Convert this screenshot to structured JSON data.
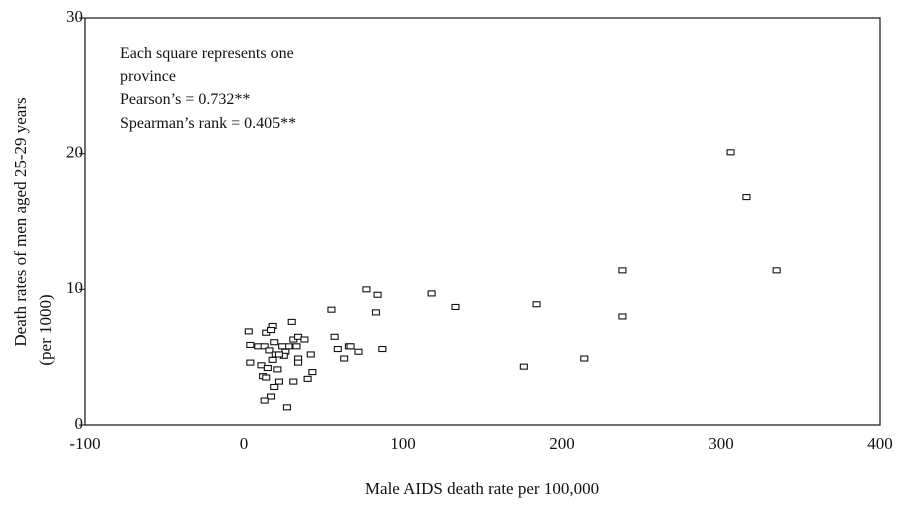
{
  "chart_data": {
    "type": "scatter",
    "xlabel": "Male AIDS death rate per 100,000",
    "ylabel": [
      "Death rates of men aged 25-29 years",
      "(per 1000)"
    ],
    "annotations": [
      "Each square represents one",
      "province",
      "Pearson’s = 0.732**",
      "Spearman’s rank = 0.405**"
    ],
    "xlim": [
      -100,
      400
    ],
    "xticks": [
      -100,
      0,
      100,
      200,
      300,
      400
    ],
    "ylim": [
      0,
      30
    ],
    "yticks": [
      0,
      10,
      20,
      30
    ],
    "color": "#111111",
    "x": [
      306,
      316,
      335,
      238,
      238,
      214,
      176,
      184,
      133,
      118,
      77,
      84,
      83,
      55,
      57,
      87,
      59,
      66,
      67,
      72,
      63,
      3,
      4,
      4,
      11,
      9,
      13,
      14,
      18,
      17,
      19,
      16,
      20,
      18,
      12,
      14,
      15,
      21,
      22,
      19,
      17,
      13,
      27,
      30,
      31,
      28,
      26,
      25,
      22,
      34,
      38,
      34,
      34,
      42,
      43,
      40,
      31,
      33,
      24
    ],
    "y": [
      20.1,
      16.8,
      11.4,
      11.4,
      8.0,
      4.9,
      4.3,
      8.9,
      8.7,
      9.7,
      10.0,
      9.6,
      8.3,
      8.5,
      6.5,
      5.6,
      5.6,
      5.8,
      5.8,
      5.4,
      4.9,
      6.9,
      5.9,
      4.6,
      4.4,
      5.8,
      5.8,
      6.8,
      7.3,
      7.0,
      6.1,
      5.5,
      5.2,
      4.8,
      3.6,
      3.5,
      4.2,
      4.1,
      3.2,
      2.8,
      2.1,
      1.8,
      1.3,
      7.6,
      6.3,
      5.8,
      5.4,
      5.1,
      5.2,
      6.5,
      6.3,
      4.9,
      4.6,
      5.2,
      3.9,
      3.4,
      3.2,
      5.8,
      5.8
    ]
  }
}
